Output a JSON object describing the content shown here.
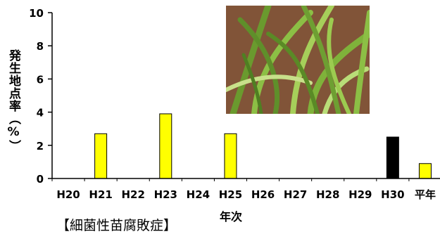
{
  "chart_data": {
    "type": "bar",
    "categories": [
      "H20",
      "H21",
      "H22",
      "H23",
      "H24",
      "H25",
      "H26",
      "H27",
      "H28",
      "H29",
      "H30",
      "平年"
    ],
    "values": [
      0,
      2.7,
      0,
      3.9,
      0,
      2.7,
      0,
      0,
      0,
      0,
      2.5,
      0.9
    ],
    "bar_colors": [
      "#ffff00",
      "#ffff00",
      "#ffff00",
      "#ffff00",
      "#ffff00",
      "#ffff00",
      "#ffff00",
      "#ffff00",
      "#ffff00",
      "#ffff00",
      "#000000",
      "#ffff00"
    ],
    "ylabel": "発生地点率（%）",
    "xlabel": "年次",
    "ylim": [
      0,
      10
    ],
    "yticks": [
      0,
      2,
      4,
      6,
      8,
      10
    ],
    "grid": false
  },
  "caption": "【細菌性苗腐敗症】",
  "photo": {
    "icon": "wheat-seedling-photo",
    "colors": {
      "soil": "#8a5a3c",
      "leaf": "#7fb23a",
      "leaf_light": "#c8e08a"
    }
  }
}
